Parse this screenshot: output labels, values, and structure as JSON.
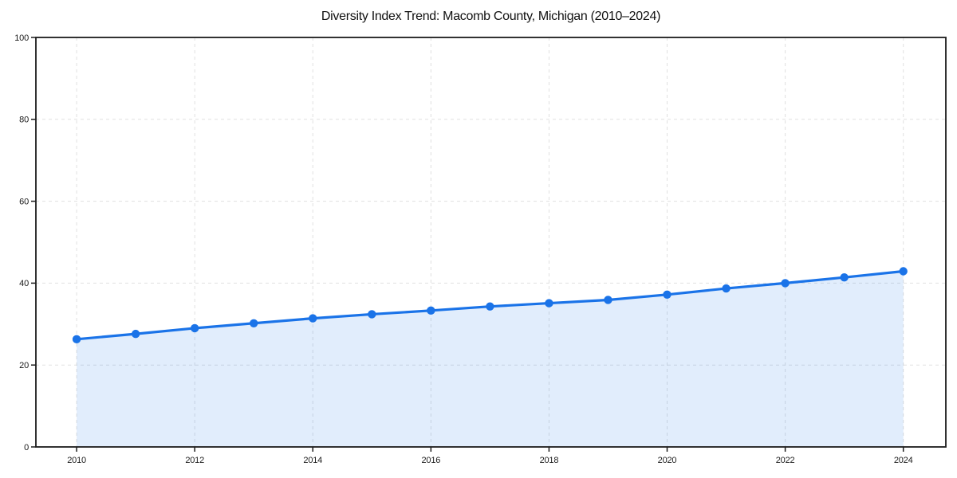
{
  "page": {
    "title": "Diversity Index Trend: Macomb County, Michigan (2010–2024)"
  },
  "chart_data": {
    "type": "line",
    "title": "Diversity Index Trend: Macomb County, Michigan (2010–2024)",
    "x": [
      2010,
      2011,
      2012,
      2013,
      2014,
      2015,
      2016,
      2017,
      2018,
      2019,
      2020,
      2021,
      2022,
      2023,
      2024
    ],
    "series": [
      {
        "name": "Diversity Index",
        "values": [
          26.3,
          27.6,
          29.0,
          30.2,
          31.4,
          32.4,
          33.3,
          34.3,
          35.1,
          35.9,
          37.2,
          38.7,
          40.0,
          41.4,
          42.9
        ]
      }
    ],
    "xlabel": "",
    "ylabel": "",
    "xlim": [
      2009.31,
      2024.72
    ],
    "ylim": [
      0,
      100
    ],
    "xticks": [
      2010,
      2012,
      2014,
      2016,
      2018,
      2020,
      2022,
      2024
    ],
    "yticks": [
      0,
      20,
      40,
      60,
      80,
      100
    ],
    "grid": true,
    "grid_style": "dashed",
    "legend": "none",
    "marker": "circle",
    "area_fill": true,
    "colors": {
      "line": "#1a73e8",
      "marker": "#1a73e8",
      "fill": "rgba(26,115,232,0.13)",
      "grid": "#e0e0e0",
      "spine": "#1c1c1c",
      "tick_label": "#1a1a1a",
      "title": "#111111",
      "background": "#ffffff"
    }
  }
}
